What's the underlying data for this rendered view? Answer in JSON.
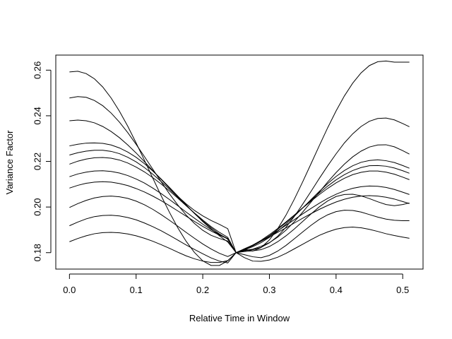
{
  "chart_data": {
    "type": "line",
    "title": "",
    "xlabel": "Relative Time in Window",
    "ylabel": "Variance Factor",
    "xlim": [
      -0.0205,
      0.5305
    ],
    "ylim": [
      0.1728,
      0.2666
    ],
    "x_ticks": [
      "0.0",
      "0.1",
      "0.2",
      "0.3",
      "0.4",
      "0.5"
    ],
    "y_ticks": [
      "0.18",
      "0.20",
      "0.22",
      "0.24",
      "0.26"
    ],
    "grid": false,
    "legend": "none",
    "line_color": "#000000",
    "x_samples": [
      0.0,
      0.0125,
      0.025,
      0.0375,
      0.05,
      0.0625,
      0.075,
      0.0875,
      0.1,
      0.1125,
      0.125,
      0.1375,
      0.15,
      0.1625,
      0.175,
      0.1875,
      0.2,
      0.2125,
      0.225,
      0.2375,
      0.25,
      0.2625,
      0.275,
      0.2875,
      0.3,
      0.3125,
      0.325,
      0.3375,
      0.35,
      0.3625,
      0.375,
      0.3875,
      0.4,
      0.4125,
      0.425,
      0.4375,
      0.45,
      0.4625,
      0.475,
      0.4875,
      0.5,
      0.51
    ],
    "series": [
      {
        "values": [
          0.2592,
          0.2595,
          0.2585,
          0.2562,
          0.2526,
          0.2478,
          0.242,
          0.2354,
          0.2281,
          0.2205,
          0.2127,
          0.205,
          0.1977,
          0.1909,
          0.185,
          0.1801,
          0.1764,
          0.1744,
          0.1744,
          0.1764,
          0.18,
          0.1815,
          0.1807,
          0.1822,
          0.1856,
          0.1905,
          0.1965,
          0.2035,
          0.2111,
          0.219,
          0.227,
          0.2348,
          0.2421,
          0.2487,
          0.2543,
          0.2588,
          0.262,
          0.2637,
          0.264,
          0.2635,
          0.2635,
          0.2635
        ]
      },
      {
        "values": [
          0.2478,
          0.2484,
          0.2481,
          0.2467,
          0.2444,
          0.2412,
          0.2372,
          0.2326,
          0.2275,
          0.2221,
          0.2166,
          0.2111,
          0.2058,
          0.2009,
          0.1965,
          0.1928,
          0.1898,
          0.1876,
          0.1862,
          0.1851,
          0.18,
          0.1808,
          0.1813,
          0.1823,
          0.1843,
          0.1872,
          0.1912,
          0.1959,
          0.2013,
          0.2069,
          0.2126,
          0.2181,
          0.2233,
          0.2281,
          0.2321,
          0.2353,
          0.2376,
          0.2388,
          0.239,
          0.2382,
          0.2366,
          0.2352
        ]
      },
      {
        "values": [
          0.2378,
          0.2381,
          0.2378,
          0.2369,
          0.2353,
          0.2331,
          0.2304,
          0.2272,
          0.2237,
          0.2199,
          0.216,
          0.2121,
          0.2083,
          0.2047,
          0.2014,
          0.1985,
          0.1961,
          0.1941,
          0.1924,
          0.1905,
          0.18,
          0.181,
          0.1815,
          0.1828,
          0.1844,
          0.1868,
          0.1899,
          0.1936,
          0.1978,
          0.2022,
          0.2066,
          0.211,
          0.2151,
          0.2188,
          0.222,
          0.2245,
          0.2263,
          0.2272,
          0.2273,
          0.2264,
          0.2247,
          0.2232
        ]
      },
      {
        "values": [
          0.2268,
          0.2275,
          0.228,
          0.2281,
          0.2279,
          0.2272,
          0.2259,
          0.2241,
          0.2218,
          0.219,
          0.2158,
          0.2123,
          0.2086,
          0.2048,
          0.201,
          0.1972,
          0.1936,
          0.1904,
          0.1874,
          0.1847,
          0.18,
          0.1812,
          0.1826,
          0.1844,
          0.1867,
          0.1894,
          0.1925,
          0.196,
          0.1996,
          0.2033,
          0.2069,
          0.2103,
          0.2134,
          0.216,
          0.2181,
          0.2196,
          0.2204,
          0.2207,
          0.2203,
          0.2195,
          0.2182,
          0.217
        ]
      },
      {
        "values": [
          0.2228,
          0.2238,
          0.2245,
          0.2249,
          0.2249,
          0.2244,
          0.2234,
          0.2218,
          0.2198,
          0.2173,
          0.2144,
          0.2112,
          0.2078,
          0.2043,
          0.2007,
          0.1972,
          0.1939,
          0.1909,
          0.1882,
          0.1859,
          0.18,
          0.1814,
          0.183,
          0.185,
          0.1874,
          0.1902,
          0.1932,
          0.1964,
          0.1997,
          0.203,
          0.2062,
          0.2092,
          0.2119,
          0.2142,
          0.216,
          0.2173,
          0.2181,
          0.2182,
          0.2179,
          0.2171,
          0.2159,
          0.2148
        ]
      },
      {
        "values": [
          0.2188,
          0.2201,
          0.221,
          0.2216,
          0.2217,
          0.2214,
          0.2206,
          0.2193,
          0.2175,
          0.2154,
          0.2129,
          0.2101,
          0.2071,
          0.2039,
          0.2006,
          0.1974,
          0.1943,
          0.1914,
          0.1889,
          0.1867,
          0.18,
          0.1815,
          0.1833,
          0.1854,
          0.1879,
          0.1906,
          0.1935,
          0.1965,
          0.1996,
          0.2026,
          0.2055,
          0.2082,
          0.2106,
          0.2126,
          0.2142,
          0.2152,
          0.2158,
          0.2158,
          0.2153,
          0.2144,
          0.2131,
          0.212
        ]
      },
      {
        "values": [
          0.2133,
          0.2145,
          0.2153,
          0.2158,
          0.2159,
          0.2156,
          0.2149,
          0.2138,
          0.2123,
          0.2105,
          0.2083,
          0.2059,
          0.2033,
          0.2006,
          0.1978,
          0.1951,
          0.1925,
          0.1901,
          0.188,
          0.1862,
          0.18,
          0.1816,
          0.1833,
          0.1852,
          0.1873,
          0.1896,
          0.192,
          0.1945,
          0.197,
          0.1994,
          0.2017,
          0.2038,
          0.2056,
          0.2071,
          0.2082,
          0.2089,
          0.2092,
          0.2091,
          0.2086,
          0.2077,
          0.2065,
          0.2055
        ]
      },
      {
        "values": [
          0.2083,
          0.2095,
          0.2104,
          0.2109,
          0.2111,
          0.2109,
          0.2103,
          0.2094,
          0.2081,
          0.2066,
          0.2048,
          0.2028,
          0.2006,
          0.1983,
          0.196,
          0.1937,
          0.1915,
          0.1895,
          0.1877,
          0.1861,
          0.18,
          0.1817,
          0.1833,
          0.185,
          0.1869,
          0.1889,
          0.1909,
          0.193,
          0.1951,
          0.1971,
          0.199,
          0.2007,
          0.2022,
          0.2034,
          0.2043,
          0.2048,
          0.205,
          0.2048,
          0.2043,
          0.2035,
          0.2024,
          0.2015
        ]
      },
      {
        "values": [
          0.1998,
          0.2015,
          0.2029,
          0.204,
          0.2046,
          0.2048,
          0.2045,
          0.2038,
          0.2026,
          0.201,
          0.199,
          0.1967,
          0.1942,
          0.1916,
          0.1889,
          0.1863,
          0.1838,
          0.1816,
          0.1797,
          0.1783,
          0.18,
          0.1805,
          0.1808,
          0.1813,
          0.1827,
          0.1848,
          0.1874,
          0.1904,
          0.1937,
          0.197,
          0.2001,
          0.2027,
          0.2046,
          0.2055,
          0.2056,
          0.2049,
          0.2037,
          0.2023,
          0.2011,
          0.2006,
          0.2011,
          0.2018
        ]
      },
      {
        "values": [
          0.1918,
          0.1934,
          0.1948,
          0.1958,
          0.1963,
          0.1964,
          0.1961,
          0.1954,
          0.1944,
          0.193,
          0.1914,
          0.1896,
          0.1876,
          0.1855,
          0.1834,
          0.1814,
          0.1795,
          0.1777,
          0.1763,
          0.1755,
          0.18,
          0.1791,
          0.1782,
          0.1778,
          0.1788,
          0.1807,
          0.1832,
          0.1861,
          0.1891,
          0.192,
          0.1946,
          0.1966,
          0.198,
          0.1986,
          0.1985,
          0.1978,
          0.1967,
          0.1956,
          0.1947,
          0.1942,
          0.194,
          0.194
        ]
      },
      {
        "values": [
          0.1848,
          0.1862,
          0.1874,
          0.1883,
          0.1888,
          0.1889,
          0.1887,
          0.1882,
          0.1874,
          0.1863,
          0.185,
          0.1835,
          0.1819,
          0.1802,
          0.1786,
          0.1773,
          0.1763,
          0.1757,
          0.1757,
          0.1765,
          0.18,
          0.1778,
          0.1763,
          0.1762,
          0.1768,
          0.178,
          0.1797,
          0.1817,
          0.1837,
          0.1857,
          0.1876,
          0.1891,
          0.1903,
          0.191,
          0.1912,
          0.1909,
          0.1902,
          0.1893,
          0.1883,
          0.1875,
          0.1868,
          0.1863
        ]
      }
    ]
  }
}
